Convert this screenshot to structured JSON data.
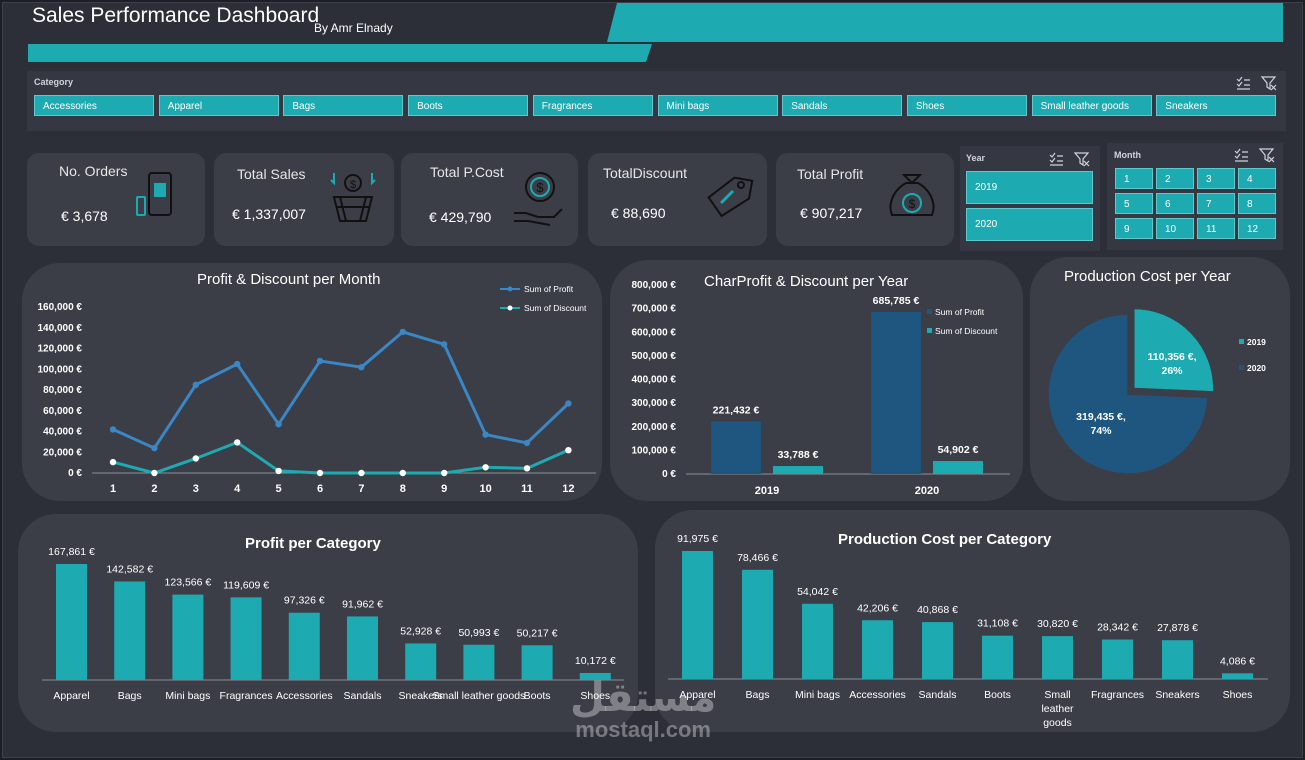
{
  "header": {
    "title": "Sales Performance Dashboard",
    "byline": "By Amr Elnady"
  },
  "category_slicer": {
    "title": "Category",
    "items": [
      "Accessories",
      "Apparel",
      "Bags",
      "Boots",
      "Fragrances",
      "Mini bags",
      "Sandals",
      "Shoes",
      "Small leather goods",
      "Sneakers"
    ]
  },
  "kpis": [
    {
      "label": "No. Orders",
      "value": "€ 3,678",
      "icon": "phone-bag-icon"
    },
    {
      "label": "Total Sales",
      "value": "€ 1,337,007",
      "icon": "money-basket-icon"
    },
    {
      "label": "Total P.Cost",
      "value": "€ 429,790",
      "icon": "hand-coin-icon"
    },
    {
      "label": "TotalDiscount",
      "value": "€ 88,690",
      "icon": "discount-tag-icon"
    },
    {
      "label": "Total Profit",
      "value": "€ 907,217",
      "icon": "money-bag-icon"
    }
  ],
  "year_slicer": {
    "title": "Year",
    "items": [
      "2019",
      "2020"
    ]
  },
  "month_slicer": {
    "title": "Month",
    "items": [
      "1",
      "2",
      "3",
      "4",
      "5",
      "6",
      "7",
      "8",
      "9",
      "10",
      "11",
      "12"
    ]
  },
  "colors": {
    "accent": "#1eaab1",
    "dark_blue": "#1e5680",
    "line_blue": "#3b86c4",
    "background": "#2c2f37",
    "panel": "#3b3e47"
  },
  "watermark": {
    "arabic": "مستقل",
    "latin": "mostaql.com"
  },
  "chart_data": [
    {
      "type": "line",
      "title": "Profit & Discount per Month",
      "x": [
        1,
        2,
        3,
        4,
        5,
        6,
        7,
        8,
        9,
        10,
        11,
        12
      ],
      "y_ticks": [
        "0 €",
        "20,000 €",
        "40,000 €",
        "60,000 €",
        "80,000 €",
        "100,000 €",
        "120,000 €",
        "140,000 €",
        "160,000 €"
      ],
      "ylim": [
        0,
        160000
      ],
      "legend_position": "top-right",
      "series": [
        {
          "name": "Sum of Profit",
          "values": [
            42000,
            24000,
            85000,
            105000,
            47000,
            108000,
            102000,
            136000,
            124000,
            37000,
            29000,
            67000
          ]
        },
        {
          "name": "Sum of Discount",
          "values": [
            10500,
            0,
            14000,
            29500,
            2000,
            0,
            0,
            0,
            0,
            5500,
            4500,
            22000
          ]
        }
      ]
    },
    {
      "type": "bar",
      "title": "CharProfit & Discount per Year",
      "categories": [
        "2019",
        "2020"
      ],
      "y_ticks": [
        "0 €",
        "100,000 €",
        "200,000 €",
        "300,000 €",
        "400,000 €",
        "500,000 €",
        "600,000 €",
        "700,000 €",
        "800,000 €"
      ],
      "ylim": [
        0,
        800000
      ],
      "legend_position": "top-right",
      "series": [
        {
          "name": "Sum of Profit",
          "values": [
            221432,
            685785
          ],
          "labels": [
            "221,432 €",
            "685,785 €"
          ]
        },
        {
          "name": "Sum of Discount",
          "values": [
            33788,
            54902
          ],
          "labels": [
            "33,788 €",
            "54,902 €"
          ]
        }
      ]
    },
    {
      "type": "pie",
      "title": "Production Cost per Year",
      "categories": [
        "2019",
        "2020"
      ],
      "values": [
        110356,
        319435
      ],
      "labels": [
        [
          "110,356 €,",
          "26%"
        ],
        [
          "319,435 €,",
          "74%"
        ]
      ],
      "legend_position": "right"
    },
    {
      "type": "bar",
      "title": "Profit per Category",
      "categories": [
        "Apparel",
        "Bags",
        "Mini bags",
        "Fragrances",
        "Accessories",
        "Sandals",
        "Sneakers",
        "Small leather goods",
        "Boots",
        "Shoes"
      ],
      "values": [
        167861,
        142582,
        123566,
        119609,
        97326,
        91962,
        52928,
        50993,
        50217,
        10172
      ],
      "labels": [
        "167,861 €",
        "142,582 €",
        "123,566 €",
        "119,609 €",
        "97,326 €",
        "91,962 €",
        "52,928 €",
        "50,993 €",
        "50,217 €",
        "10,172 €"
      ]
    },
    {
      "type": "bar",
      "title": "Production Cost per Category",
      "categories": [
        "Apparel",
        "Bags",
        "Mini bags",
        "Accessories",
        "Sandals",
        "Boots",
        "Small leather goods",
        "Fragrances",
        "Sneakers",
        "Shoes"
      ],
      "values": [
        91975,
        78466,
        54042,
        42206,
        40868,
        31108,
        30820,
        28342,
        27878,
        4086
      ],
      "labels": [
        "91,975 €",
        "78,466 €",
        "54,042 €",
        "42,206 €",
        "40,868 €",
        "31,108 €",
        "30,820 €",
        "28,342 €",
        "27,878 €",
        "4,086 €"
      ]
    }
  ]
}
